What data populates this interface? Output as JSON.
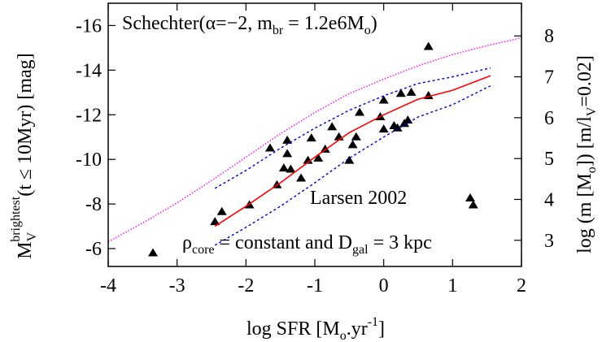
{
  "chart_data": {
    "type": "scatter",
    "xlabel": "log SFR [M",
    "xlabel_sub": "o",
    "xlabel_mid": ".yr",
    "xlabel_sup": "-1",
    "xlabel_end": "]",
    "ylabel_main": "M",
    "ylabel_sub": "V",
    "ylabel_sup": "brightest",
    "ylabel_tail": "(t ≤ 10Myr) [mag]",
    "y2label_main": "log (m [M",
    "y2label_sub": "o",
    "y2label_mid": "]) [m/l",
    "y2label_sub2": "V",
    "y2label_tail": "=0.02]",
    "xlim": [
      -4,
      2
    ],
    "ylim": [
      -5.2,
      -17
    ],
    "y2lim": [
      2.36,
      8.8
    ],
    "x_ticks": [
      "-4",
      "-3",
      "-2",
      "-1",
      "0",
      "1",
      "2"
    ],
    "y_ticks": [
      "-6",
      "-8",
      "-10",
      "-12",
      "-14",
      "-16"
    ],
    "y2_ticks": [
      "3",
      "4",
      "5",
      "6",
      "7",
      "8"
    ],
    "annotation_top": "Schechter(α=−2, m",
    "annotation_top_sub": "br",
    "annotation_top_mid": " = 1.2e6M",
    "annotation_top_sub2": "o",
    "annotation_top_end": ")",
    "annotation_bottom": "ρ",
    "annotation_bottom_sub": "core",
    "annotation_bottom_mid": " = constant and D",
    "annotation_bottom_sub2": "gal",
    "annotation_bottom_end": " = 3 kpc",
    "legend_entry": "Larsen 2002",
    "colors": {
      "median": "#ff0000",
      "band": "#0000cc",
      "schechter": "#ff00ff",
      "points": "#000000"
    },
    "series": [
      {
        "name": "Larsen 2002",
        "style": "triangle-points",
        "points": [
          [
            -3.35,
            -5.8
          ],
          [
            -2.45,
            -7.2
          ],
          [
            -2.35,
            -7.65
          ],
          [
            -1.95,
            -7.95
          ],
          [
            -1.65,
            -10.5
          ],
          [
            -1.55,
            -8.85
          ],
          [
            -1.45,
            -9.6
          ],
          [
            -1.4,
            -10.85
          ],
          [
            -1.4,
            -10.25
          ],
          [
            -1.35,
            -9.55
          ],
          [
            -1.2,
            -9.15
          ],
          [
            -1.1,
            -9.95
          ],
          [
            -1.05,
            -10.95
          ],
          [
            -0.95,
            -10.05
          ],
          [
            -0.85,
            -10.45
          ],
          [
            -0.75,
            -11.45
          ],
          [
            -0.65,
            -11.0
          ],
          [
            -0.5,
            -9.95
          ],
          [
            -0.45,
            -10.65
          ],
          [
            -0.4,
            -11.0
          ],
          [
            -0.35,
            -12.1
          ],
          [
            -0.05,
            -11.9
          ],
          [
            0.0,
            -12.65
          ],
          [
            0.0,
            -11.35
          ],
          [
            0.15,
            -11.5
          ],
          [
            0.2,
            -11.4
          ],
          [
            0.25,
            -12.95
          ],
          [
            0.3,
            -11.6
          ],
          [
            0.35,
            -11.75
          ],
          [
            0.4,
            -13.0
          ],
          [
            0.65,
            -12.85
          ],
          [
            0.65,
            -15.05
          ],
          [
            1.3,
            -7.95
          ]
        ]
      },
      {
        "name": "",
        "style": "median-line",
        "x": [
          -2.45,
          -2.0,
          -1.5,
          -1.0,
          -0.5,
          0.0,
          0.5,
          1.0,
          1.55
        ],
        "y": [
          -7.0,
          -7.9,
          -8.95,
          -10.1,
          -11.2,
          -12.0,
          -12.7,
          -13.1,
          -13.75
        ]
      },
      {
        "name": "",
        "style": "upper-band",
        "x": [
          -2.45,
          -2.0,
          -1.5,
          -1.0,
          -0.5,
          0.0,
          0.5,
          1.0,
          1.55
        ],
        "y": [
          -8.7,
          -9.5,
          -10.5,
          -11.4,
          -12.2,
          -12.85,
          -13.4,
          -13.7,
          -14.1
        ]
      },
      {
        "name": "",
        "style": "lower-band",
        "x": [
          -2.45,
          -2.0,
          -1.5,
          -1.0,
          -0.5,
          0.0,
          0.5,
          1.0,
          1.55
        ],
        "y": [
          -6.15,
          -6.95,
          -7.9,
          -8.95,
          -10.05,
          -11.0,
          -11.9,
          -12.45,
          -13.3
        ]
      },
      {
        "name": "",
        "style": "schechter-line",
        "x": [
          -4.0,
          -3.5,
          -3.0,
          -2.5,
          -2.0,
          -1.5,
          -1.0,
          -0.5,
          0.0,
          0.5,
          1.0,
          1.5,
          2.0
        ],
        "y": [
          -6.3,
          -7.15,
          -8.05,
          -9.05,
          -10.1,
          -11.15,
          -12.1,
          -12.95,
          -13.6,
          -14.2,
          -14.7,
          -15.1,
          -15.45
        ]
      }
    ]
  }
}
